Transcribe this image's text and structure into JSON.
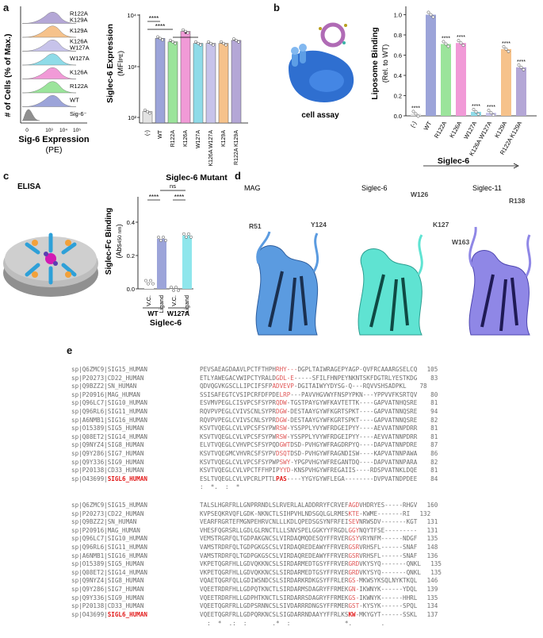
{
  "panels": {
    "a": "a",
    "b": "b",
    "c": "c",
    "d": "d",
    "e": "e"
  },
  "panel_a": {
    "hist": {
      "ylabel": "# of Cells (% of Max.)",
      "xlabel_line1": "Sig-6 Expression",
      "xlabel_line2": "(PE)",
      "x_ticks": [
        "0",
        "10³",
        "10⁴",
        "10⁵"
      ],
      "rows": [
        {
          "label": "R122A K129A",
          "color": "#b4a7d6"
        },
        {
          "label": "K129A",
          "color": "#f6c28b"
        },
        {
          "label": "K126A W127A",
          "color": "#c7c3ea"
        },
        {
          "label": "W127A",
          "color": "#8fdbe8"
        },
        {
          "label": "K126A",
          "color": "#f19ad7"
        },
        {
          "label": "R122A",
          "color": "#9be49b"
        },
        {
          "label": "WT",
          "color": "#9ca4d9"
        },
        {
          "label": "Sig-6⁻",
          "color": "#8f8f8f"
        }
      ]
    },
    "bar": {
      "ylabel": "Siglec-6 Expression",
      "ylabel_sub": "(MFI",
      "ylabel_sub2": "PE",
      "ylabel_sub3": ")",
      "xlabel": "Siglec-6 Mutant",
      "y_ticks": [
        "10²",
        "10³",
        "10⁴"
      ],
      "sig": [
        "****",
        "****",
        "*"
      ]
    }
  },
  "panel_b": {
    "cell_caption": "cell assay",
    "ylabel": "Liposome Binding",
    "ylabel2": "(Rel. to WT)",
    "xlabel": "Siglec-6",
    "y_ticks": [
      "0.0",
      "0.2",
      "0.4",
      "0.6",
      "0.8",
      "1.0"
    ]
  },
  "panel_c": {
    "title": "ELISA",
    "ylabel": "Siglec-Fc Binding",
    "ylabel_sub": "(Abs",
    "ylabel_sub2": "450 nm",
    "ylabel_sub3": ")",
    "y_ticks": [
      "0.0",
      "0.2",
      "0.4"
    ],
    "sig": [
      "****",
      "ns",
      "****"
    ],
    "groups": [
      "WT",
      "W127A"
    ],
    "xlabel": "Siglec-6"
  },
  "panel_d": {
    "structures": [
      {
        "name": "MAG",
        "labels": [
          "R51",
          "Y124"
        ]
      },
      {
        "name": "Siglec-6",
        "labels": [
          "W126",
          "K127"
        ]
      },
      {
        "name": "Siglec-11",
        "labels": [
          "R138",
          "W163"
        ]
      }
    ]
  },
  "panel_e": {
    "block1": [
      {
        "id": "sp|Q6ZMC9|SIG15_HUMAN",
        "pre": "PEVSAEAGDAAVLPCTFTHPH",
        "red": "RHY---",
        "post": "DGPLTAIWRAGEPYAGP-QVFRCAAARGSELCQ",
        "num": "105"
      },
      {
        "id": "sp|P20273|CD22_HUMAN",
        "pre": "ETLYAWEGACVWIPCTYRALD",
        "red": "GDL-E",
        "post": "-----SFILFHNPEYNKNTSKFDGTRLYESTKDG",
        "num": "83"
      },
      {
        "id": "sp|Q9BZZ2|SN_HUMAN",
        "pre": "QDVQGVKGSCLLIPCIFSFP",
        "red": "ADVEVP",
        "post": "-DGITAIWYYDYSG-Q---RQVVSHSADPKL",
        "num": "78"
      },
      {
        "id": "sp|P20916|MAG_HUMAN",
        "pre": "SSISAFEGTCVSIPCRFDFPDE",
        "red": "LRP",
        "post": "---PAVVHGVWYFNSPYPKN---YPPVVFKSRTQV",
        "num": "80"
      },
      {
        "id": "sp|Q96LC7|SIG10_HUMAN",
        "pre": "ESVMVPEGLCISVPCSFSYPR",
        "red": "QDW",
        "post": "-TGSTPAYGYWFKAVTETTK----GAPVATNHQSRE",
        "num": "81"
      },
      {
        "id": "sp|Q96RL6|SIG11_HUMAN",
        "pre": "RQVPVPEGLCVIVSCNLSYPR",
        "red": "DGW",
        "post": "-DESTAAYGYWFKGRTSPKT----GAPVATNNQSRE",
        "num": "94"
      },
      {
        "id": "sp|A6NMB1|SIG16_HUMAN",
        "pre": "RQVPVPEGLCVIVSCNLSYPR",
        "red": "DGW",
        "post": "-DESTAAYGYWFKGRTSPKT----GAPVATNNQSRE",
        "num": "82"
      },
      {
        "id": "sp|O15389|SIG5_HUMAN",
        "pre": "KSVTVQEGLCVLVPCSFSYPW",
        "red": "RSW",
        "post": "-YSSPPLYVYWFRDGEIPYY----AEVVATNNPDRR",
        "num": "81"
      },
      {
        "id": "sp|Q08ET2|SIG14_HUMAN",
        "pre": "KSVTVQEGLCVLVPCSFSYPW",
        "red": "RSW",
        "post": "-YSSPPLYVYWFRDGEIPYY----AEVVATNNPDRR",
        "num": "81"
      },
      {
        "id": "sp|Q9NYZ4|SIG8_HUMAN",
        "pre": "ELVTVQEGLCVHVPCSFSYPQD",
        "red": "GWT",
        "post": "DSD-PVHGYWFRAGDRPYQ----DAPVATNNPDRE",
        "num": "87"
      },
      {
        "id": "sp|Q9Y286|SIG7_HUMAN",
        "pre": "KSVTVQEGMCVHVRCSFSYPV",
        "red": "DSQT",
        "post": "DSD-PVHGYWFRAGNDISW----KAPVATNNPAWA",
        "num": "86"
      },
      {
        "id": "sp|Q9Y336|SIG9_HUMAN",
        "pre": "KSVTVQEGLCVLVPCSFSYPWP",
        "red": "SWY",
        "post": "-YPGPVHGYWFREGANTDQ----DAPVATNNPARA",
        "num": "82"
      },
      {
        "id": "sp|P20138|CD33_HUMAN",
        "pre": "KSVTVQEGLCVLVPCTFFHPIP",
        "red": "YYD",
        "post": "-KNSPVHGYWFREGAIIS----RDSPVATNKLDQE",
        "num": "81"
      },
      {
        "id": "sp|O43699|",
        "idred": "SIGL6_HUMAN",
        "pre": "ESLTVQEGLCVLVPCRLPTTL",
        "red": "PAS",
        "post": "----YYGYGYWFLEGA--------DVPVATNDPDEE",
        "num": "84"
      }
    ],
    "cons1": ":  *.  :  *",
    "block2": [
      {
        "id": "sp|Q6ZMC9|SIG15_HUMAN",
        "pre": "TALSLHGRFRLLGNPRRNDLSLRVERLALADDRRYFCRVEF",
        "red": "AGD",
        "post": "VHDRYES-----RHGV",
        "num": "160"
      },
      {
        "id": "sp|P20273|CD22_HUMAN",
        "pre": "KVPSEQKRVQFLGDK-NKNCTLSIHPVHLNDSGQLGLRMES",
        "red": "KTE",
        "post": "-KWME-------RI",
        "num": "132"
      },
      {
        "id": "sp|Q9BZZ2|SN_HUMAN",
        "pre": "VEARFRGRTEFMGNPEHRVCNLLLKDLQPEDSGSYNFRFEI",
        "red": "SEV",
        "post": "NRWSDV-------KGT",
        "num": "131"
      },
      {
        "id": "sp|P20916|MAG_HUMAN",
        "pre": "VHESFQGRSRLLGDLGLRNCTLLLSNVSPELGGKYYFRGDL",
        "red": "GGY",
        "post": "NQYTFSE---------",
        "num": "131"
      },
      {
        "id": "sp|Q96LC7|SIG10_HUMAN",
        "pre": "VEMSTRGRFQLTGDPAKGNCSLVIRDAQMQDESQYFFRVER",
        "red": "GSY",
        "post": "VRYNFM------NDGF",
        "num": "135"
      },
      {
        "id": "sp|Q96RL6|SIG11_HUMAN",
        "pre": "VAMSTRDRFQLTGDPGKGSCSLVIRDAQREDEAWYFFRVER",
        "red": "GSR",
        "post": "VRHSFL------SNAF",
        "num": "148"
      },
      {
        "id": "sp|A6NMB1|SIG16_HUMAN",
        "pre": "VAMSTRDRFQLTGDPGKGSCSLVIRDAQREDEAWYFFRVER",
        "red": "GSR",
        "post": "VRHSFL------SNAF",
        "num": "136"
      },
      {
        "id": "sp|O15389|SIG5_HUMAN",
        "pre": "VKPETQGRFHLLGDVQKKNCSLSIRDARMEDTGSYFFRVER",
        "red": "GRD",
        "post": "VKYSYQ-------QNKL",
        "num": "135"
      },
      {
        "id": "sp|Q08ET2|SIG14_HUMAN",
        "pre": "VKPETQGRFHLLGDVQKKNCSLSIRDARMEDTGSYFFRVER",
        "red": "GRD",
        "post": "VKYSYQ-------QNKL",
        "num": "135"
      },
      {
        "id": "sp|Q9NYZ4|SIG8_HUMAN",
        "pre": "VQAETQGRFQLLGDIWSNDCSLSIRDARKRDKGSYFFRLER",
        "red": "GS-",
        "post": "MKWSYKSQLNYKTKQL",
        "num": "146"
      },
      {
        "id": "sp|Q9Y286|SIG7_HUMAN",
        "pre": "VQEETRDRFHLLGDPQTKNCTLSIRDARMSDAGRYFFRMEK",
        "red": "GN-",
        "post": "IKWNYK------YDQL",
        "num": "139"
      },
      {
        "id": "sp|Q9Y336|SIG9_HUMAN",
        "pre": "VQEETRDRFHLLGDPHTKNCTLSIRDARRSDAGRYFFRMEK",
        "red": "GS-",
        "post": "IKWNYK------HHRL",
        "num": "135"
      },
      {
        "id": "sp|P20138|CD33_HUMAN",
        "pre": "VQEETQGRFRLLGDPSRNNCSLSIVDARRRDNGSYFFRMER",
        "red": "GST",
        "post": "-KYSYK------SPQL",
        "num": "134"
      },
      {
        "id": "sp|O43699|",
        "idred": "SIGL6_HUMAN",
        "pre": "VQEETQGRFRLLGDPQRKNCSLSIGDARRNDAAYYFFRLKS",
        "red": "KW",
        "post": "-MKYGYT------SSKL",
        "num": "137"
      }
    ],
    "cons2": "  :  *  .:  :       .*  :               *.        ."
  }
}
